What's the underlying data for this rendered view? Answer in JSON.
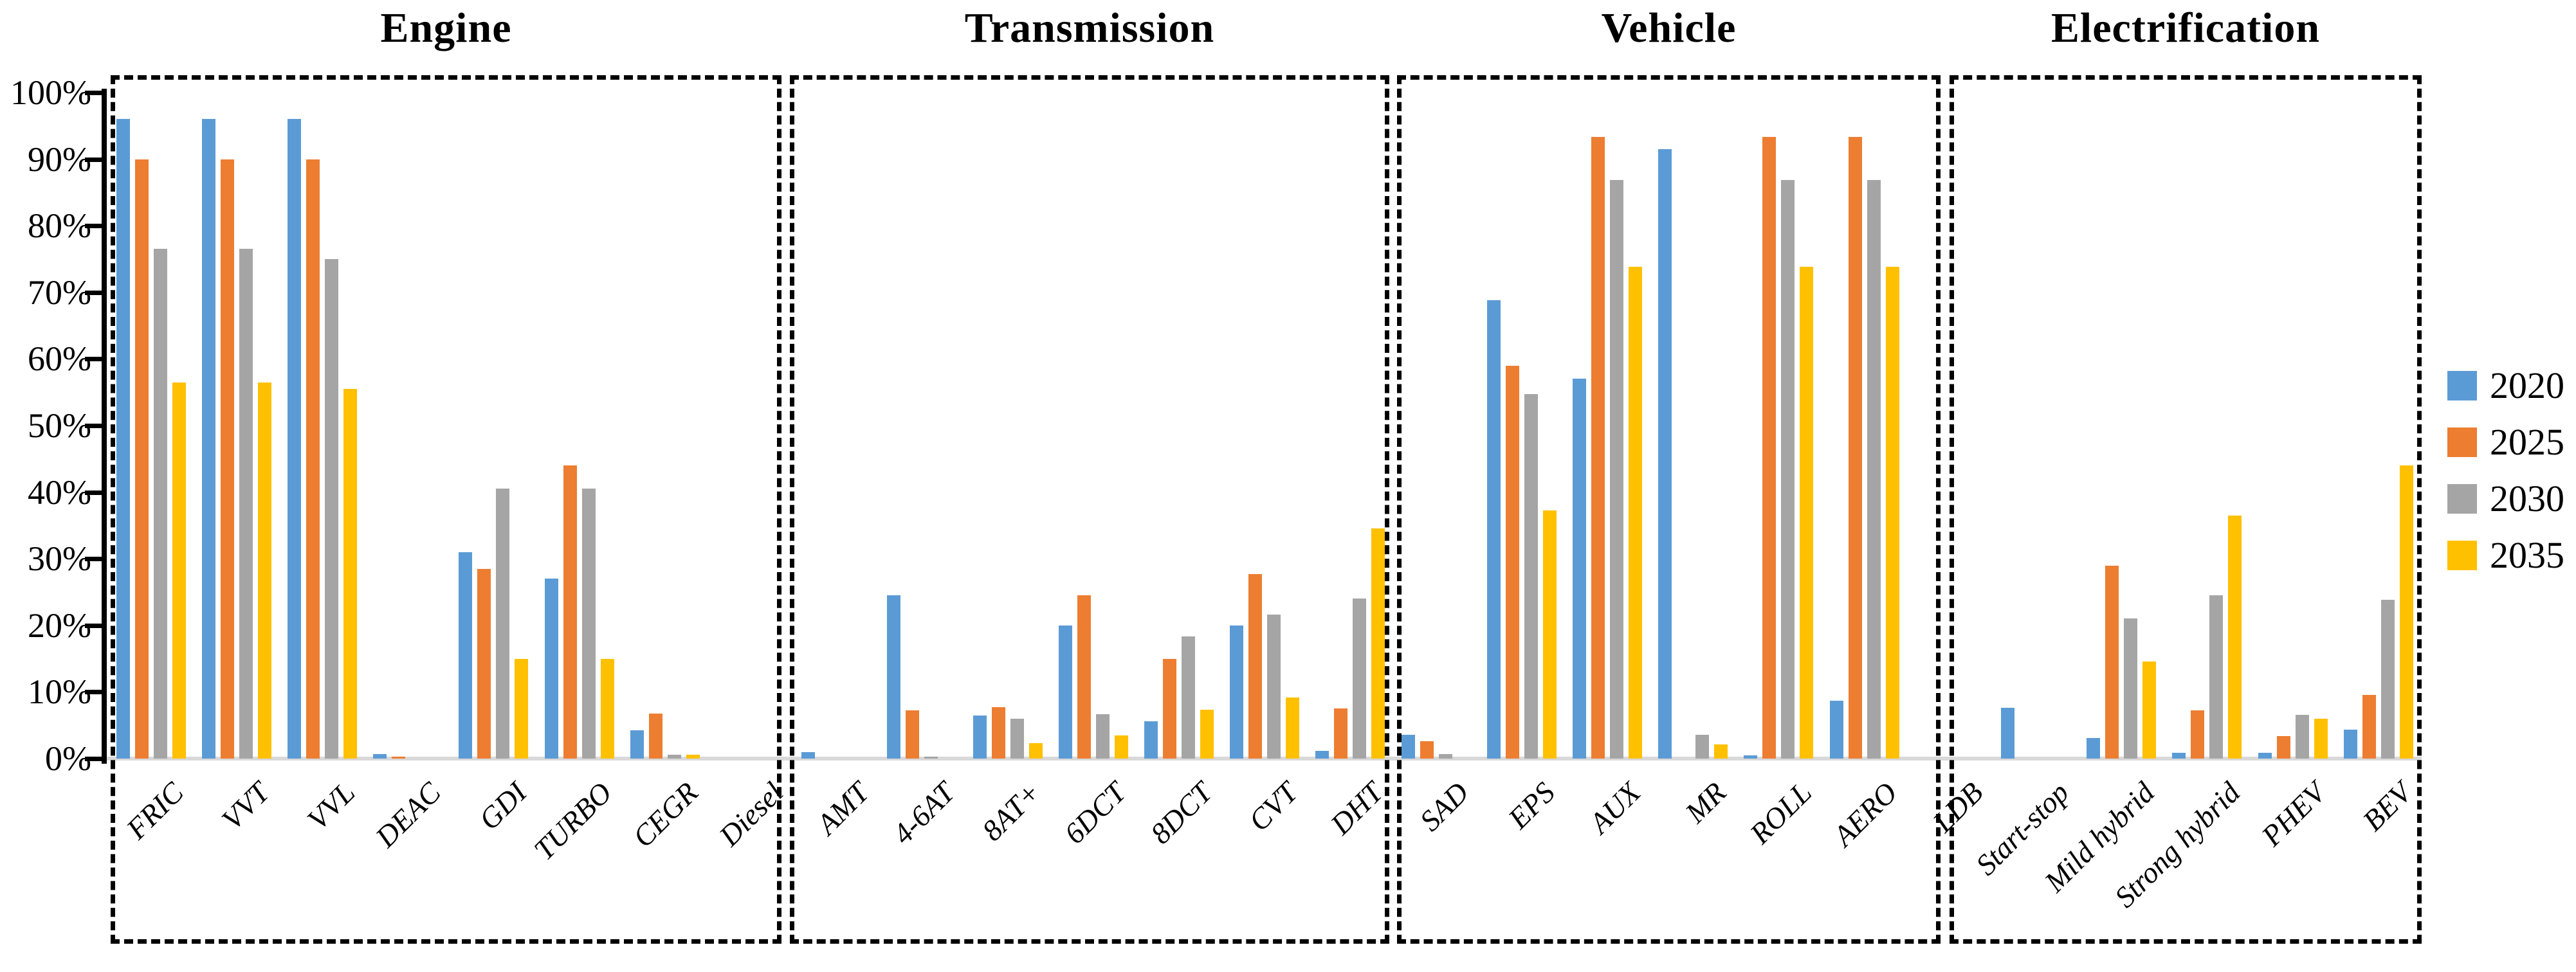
{
  "chart_data": {
    "type": "bar",
    "title": "",
    "ylabel": "",
    "xlabel": "",
    "unit": "%",
    "ylim": [
      0,
      100
    ],
    "grid": false,
    "legend_position": "right-middle",
    "yticks": [
      "0%",
      "10%",
      "20%",
      "30%",
      "40%",
      "50%",
      "60%",
      "70%",
      "80%",
      "90%",
      "100%"
    ],
    "legend": [
      {
        "label": "2020",
        "color": "#5B9BD5"
      },
      {
        "label": "2025",
        "color": "#ED7D31"
      },
      {
        "label": "2030",
        "color": "#A5A5A5"
      },
      {
        "label": "2035",
        "color": "#FFC000"
      }
    ],
    "sections": [
      {
        "title": "Engine",
        "categories": [
          "FRIC",
          "VVT",
          "VVL",
          "DEAC",
          "GDI",
          "TURBO",
          "CEGR",
          "Diesel"
        ],
        "series": [
          {
            "name": "2020",
            "values": [
              96,
              96,
              96,
              0.7,
              31,
              27,
              4.2,
              0
            ]
          },
          {
            "name": "2025",
            "values": [
              90,
              90,
              90,
              0.3,
              28.5,
              44,
              6.8,
              0
            ]
          },
          {
            "name": "2030",
            "values": [
              76.5,
              76.5,
              75,
              0,
              40.5,
              40.5,
              0.6,
              0
            ]
          },
          {
            "name": "2035",
            "values": [
              56.5,
              56.5,
              55.5,
              0,
              15,
              15,
              0.6,
              0
            ]
          }
        ]
      },
      {
        "title": "Transmission",
        "categories": [
          "AMT",
          "4-6AT",
          "8AT+",
          "6DCT",
          "8DCT",
          "CVT",
          "DHT"
        ],
        "series": [
          {
            "name": "2020",
            "values": [
              1,
              24.5,
              6.5,
              20,
              5.6,
              20,
              1.2
            ]
          },
          {
            "name": "2025",
            "values": [
              0,
              7.2,
              7.7,
              24.5,
              15,
              27.7,
              7.5
            ]
          },
          {
            "name": "2030",
            "values": [
              0,
              0.3,
              6,
              6.7,
              18.3,
              21.6,
              24
            ]
          },
          {
            "name": "2035",
            "values": [
              0,
              0,
              2.3,
              3.5,
              7.3,
              9.2,
              34.6
            ]
          }
        ]
      },
      {
        "title": "Vehicle",
        "categories": [
          "SAD",
          "EPS",
          "AUX",
          "MR",
          "ROLL",
          "AERO",
          "LDB"
        ],
        "series": [
          {
            "name": "2020",
            "values": [
              3.6,
              68.8,
              57,
              91.5,
              0.5,
              8.7,
              0
            ]
          },
          {
            "name": "2025",
            "values": [
              2.6,
              59,
              93.3,
              0,
              93.3,
              93.3,
              0
            ]
          },
          {
            "name": "2030",
            "values": [
              0.7,
              54.7,
              86.9,
              3.6,
              86.9,
              86.9,
              0
            ]
          },
          {
            "name": "2035",
            "values": [
              0,
              37.3,
              73.8,
              2.1,
              73.8,
              73.8,
              0
            ]
          }
        ]
      },
      {
        "title": "Electrification",
        "categories": [
          "Start-stop",
          "Mild hybrid",
          "Strong hybrid",
          "PHEV",
          "BEV"
        ],
        "series": [
          {
            "name": "2020",
            "values": [
              7.6,
              3.1,
              0.9,
              0.9,
              4.3
            ]
          },
          {
            "name": "2025",
            "values": [
              0,
              29,
              7.2,
              3.4,
              9.6
            ]
          },
          {
            "name": "2030",
            "values": [
              0,
              21,
              24.5,
              6.6,
              23.8
            ]
          },
          {
            "name": "2035",
            "values": [
              0,
              14.6,
              36.5,
              6,
              44
            ]
          }
        ]
      }
    ]
  }
}
